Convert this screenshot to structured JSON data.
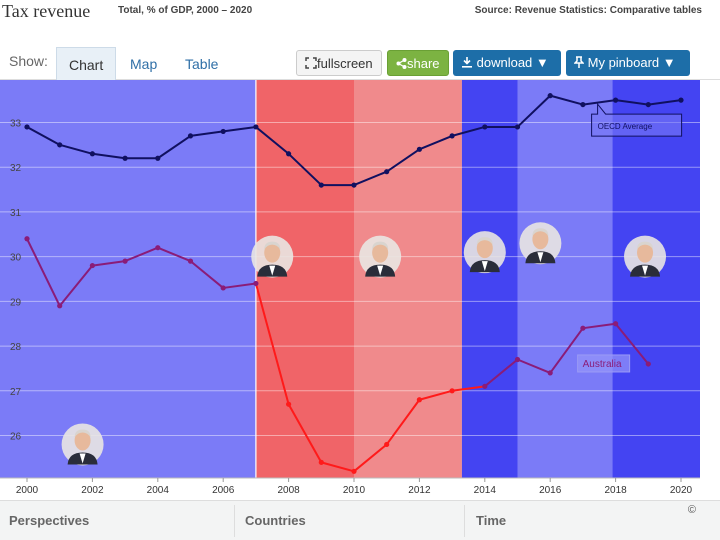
{
  "header": {
    "title": "Tax revenue",
    "subtitle": "Total, % of GDP, 2000 – 2020",
    "source": "Source: Revenue Statistics: Comparative tables"
  },
  "toolbar": {
    "show_label": "Show:",
    "tabs": [
      "Chart",
      "Map",
      "Table"
    ],
    "active_tab": "Chart",
    "fullscreen_label": "fullscreen",
    "share_label": "share",
    "download_label": "download",
    "pinboard_label": "My pinboard"
  },
  "chart_data": {
    "type": "line",
    "x_ticks": [
      "2000",
      "2002",
      "2004",
      "2006",
      "2008",
      "2010",
      "2012",
      "2014",
      "2016",
      "2018",
      "2020"
    ],
    "y_ticks": [
      "26",
      "27",
      "28",
      "29",
      "30",
      "31",
      "32",
      "33"
    ],
    "xlim": [
      2000,
      2020
    ],
    "ylim": [
      25.05,
      33.95
    ],
    "grid": true,
    "series": [
      {
        "name": "OECD Average",
        "color": "#101060",
        "x": [
          2000,
          2001,
          2002,
          2003,
          2004,
          2005,
          2006,
          2007,
          2008,
          2009,
          2010,
          2011,
          2012,
          2013,
          2014,
          2015,
          2016,
          2017,
          2018,
          2019,
          2020
        ],
        "values": [
          32.9,
          32.5,
          32.3,
          32.2,
          32.2,
          32.7,
          32.8,
          32.9,
          32.3,
          31.6,
          31.6,
          31.9,
          32.4,
          32.7,
          32.9,
          32.9,
          33.6,
          33.4,
          33.5,
          33.4,
          33.5
        ]
      },
      {
        "name": "Australia",
        "color": "#8a1c78",
        "color_highlight": "#ff1a1a",
        "x": [
          2000,
          2001,
          2002,
          2003,
          2004,
          2005,
          2006,
          2007,
          2008,
          2009,
          2010,
          2011,
          2012,
          2013,
          2014,
          2015,
          2016,
          2017,
          2018,
          2019
        ],
        "values": [
          30.4,
          28.9,
          29.8,
          29.9,
          30.2,
          29.9,
          29.3,
          29.4,
          26.7,
          25.4,
          25.2,
          25.8,
          26.8,
          27.0,
          27.1,
          27.7,
          27.4,
          28.4,
          28.5,
          27.6
        ]
      }
    ],
    "highlight_range": [
      2007,
      2013.3
    ],
    "bands": [
      {
        "from": 2000,
        "to": 2007,
        "color": "#7b7bf7",
        "portrait": "portrait-2000-2007"
      },
      {
        "from": 2007,
        "to": 2010,
        "color": "#f06468",
        "portrait": "portrait-2007-2010"
      },
      {
        "from": 2010,
        "to": 2013.3,
        "color": "#f08a8c",
        "portrait": "portrait-2010-2013"
      },
      {
        "from": 2013.3,
        "to": 2015,
        "color": "#4444f2",
        "portrait": "portrait-2013-2015"
      },
      {
        "from": 2015,
        "to": 2017.9,
        "color": "#7b7bf7",
        "portrait": "portrait-2015-2018"
      },
      {
        "from": 2017.9,
        "to": 2020.6,
        "color": "#4444f2",
        "portrait": "portrait-2018-2020"
      }
    ],
    "portraits": [
      {
        "name": "portrait-2000-2007",
        "x": 2001.7,
        "y": 25.8
      },
      {
        "name": "portrait-2007-2010",
        "x": 2007.5,
        "y": 30.0
      },
      {
        "name": "portrait-2010-2013",
        "x": 2010.8,
        "y": 30.0
      },
      {
        "name": "portrait-2013-2015",
        "x": 2014.0,
        "y": 30.1
      },
      {
        "name": "portrait-2015-2018",
        "x": 2015.7,
        "y": 30.3
      },
      {
        "name": "portrait-2018-2020",
        "x": 2018.9,
        "y": 30.0
      }
    ]
  },
  "footer": {
    "perspectives": "Perspectives",
    "countries": "Countries",
    "time": "Time",
    "copyright": "©"
  }
}
